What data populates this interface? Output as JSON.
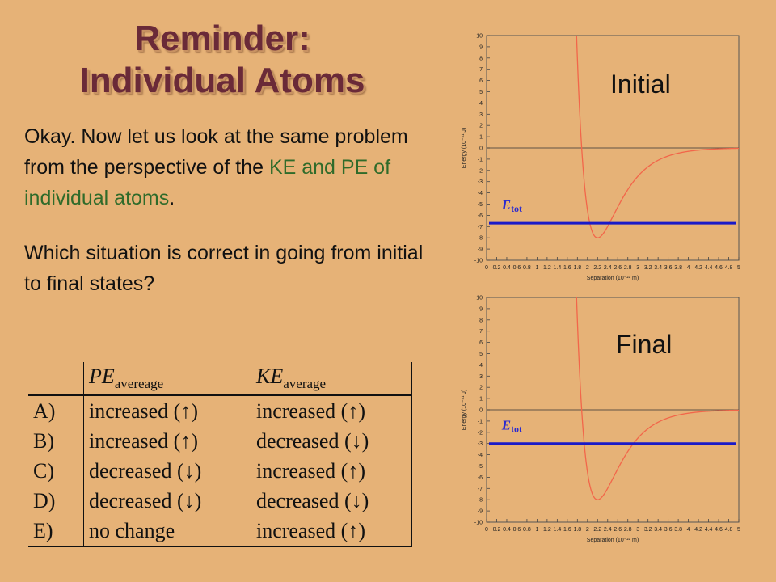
{
  "slide": {
    "title_line1": "Reminder:",
    "title_line2": "Individual Atoms",
    "paragraph1_part1": "Okay.  Now let us look at the same problem from the perspective of the ",
    "paragraph1_green": "KE and PE of individual atoms",
    "paragraph1_end": ".",
    "paragraph2": "Which situation is correct in going from initial to final states?"
  },
  "table": {
    "header_pe_symbol": "PE",
    "header_pe_sub": "avereage",
    "header_ke_symbol": "KE",
    "header_ke_sub": "average",
    "rows": [
      {
        "label": "A)",
        "pe": "increased (↑)",
        "ke": "increased (↑)"
      },
      {
        "label": "B)",
        "pe": "increased (↑)",
        "ke": "decreased (↓)"
      },
      {
        "label": "C)",
        "pe": "decreased (↓)",
        "ke": "increased (↑)"
      },
      {
        "label": "D)",
        "pe": "decreased (↓)",
        "ke": "decreased (↓)"
      },
      {
        "label": "E)",
        "pe": "no change",
        "ke": "increased (↑)"
      }
    ]
  },
  "chart_data": [
    {
      "type": "line",
      "title": "Initial",
      "xlabel": "Separation (10⁻²¹ m)",
      "ylabel": "Energy (10⁻²¹ J)",
      "xlim": [
        0,
        5
      ],
      "ylim": [
        -10,
        10
      ],
      "xticks": [
        "0",
        "0.2",
        "0.4",
        "0.6",
        "0.8",
        "1",
        "1.2",
        "1.4",
        "1.6",
        "1.8",
        "2",
        "2.2",
        "2.4",
        "2.6",
        "2.8",
        "3",
        "3.2",
        "3.4",
        "3.6",
        "3.8",
        "4",
        "4.2",
        "4.4",
        "4.6",
        "4.8",
        "5"
      ],
      "yticks": [
        "10",
        "9",
        "8",
        "7",
        "6",
        "5",
        "4",
        "3",
        "2",
        "1",
        "0",
        "-1",
        "-2",
        "-3",
        "-4",
        "-5",
        "-6",
        "-7",
        "-8",
        "-9",
        "-10"
      ],
      "annotation": "E_tot",
      "series": [
        {
          "name": "",
          "color": "#F2664A",
          "kind": "potential",
          "well_depth": -8,
          "well_position": 2.2
        },
        {
          "name": "E_tot",
          "color": "#1A1AC8",
          "kind": "hline",
          "y": -6.7
        }
      ]
    },
    {
      "type": "line",
      "title": "Final",
      "xlabel": "Separation (10⁻²¹ m)",
      "ylabel": "Energy (10⁻²¹ J)",
      "xlim": [
        0,
        5
      ],
      "ylim": [
        -10,
        10
      ],
      "xticks": [
        "0",
        "0.2",
        "0.4",
        "0.6",
        "0.8",
        "1",
        "1.2",
        "1.4",
        "1.6",
        "1.8",
        "2",
        "2.2",
        "2.4",
        "2.6",
        "2.8",
        "3",
        "3.2",
        "3.4",
        "3.6",
        "3.8",
        "4",
        "4.2",
        "4.4",
        "4.6",
        "4.8",
        "5"
      ],
      "yticks": [
        "10",
        "9",
        "8",
        "7",
        "6",
        "5",
        "4",
        "3",
        "2",
        "1",
        "0",
        "-1",
        "-2",
        "-3",
        "-4",
        "-5",
        "-6",
        "-7",
        "-8",
        "-9",
        "-10"
      ],
      "annotation": "E_tot",
      "series": [
        {
          "name": "",
          "color": "#F2664A",
          "kind": "potential",
          "well_depth": -8,
          "well_position": 2.2
        },
        {
          "name": "E_tot",
          "color": "#1A1AC8",
          "kind": "hline",
          "y": -3
        }
      ]
    }
  ]
}
